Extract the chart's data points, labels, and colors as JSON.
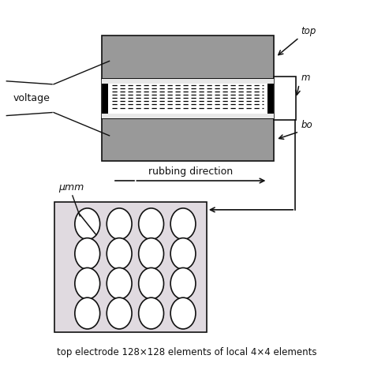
{
  "bg_color": "#ffffff",
  "gray_color": "#999999",
  "dark_color": "#111111",
  "pink_box_color": "#e0dae0",
  "bottom_label": "top electrode 128×128 elements of local 4×4 elements",
  "rubbing_text": "rubbing direction",
  "voltage_text": "voltage",
  "um_text": "μm",
  "labels_right": [
    "top",
    "m",
    "bo"
  ]
}
